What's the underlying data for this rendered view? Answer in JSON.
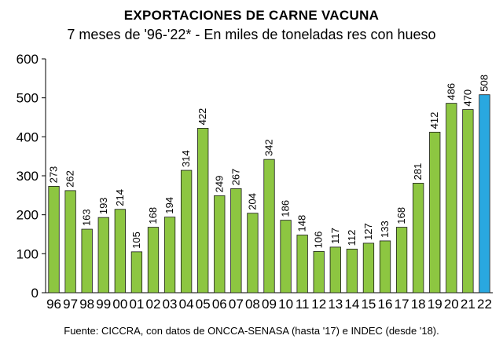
{
  "chart_data": {
    "type": "bar",
    "title": "EXPORTACIONES DE CARNE VACUNA",
    "subtitle": "7 meses de '96-'22* - En miles de toneladas res con hueso",
    "source": "Fuente: CICCRA, con datos de ONCCA-SENASA (hasta '17) e INDEC (desde '18).",
    "categories": [
      "96",
      "97",
      "98",
      "99",
      "00",
      "01",
      "02",
      "03",
      "04",
      "05",
      "06",
      "07",
      "08",
      "09",
      "10",
      "11",
      "12",
      "13",
      "14",
      "15",
      "16",
      "17",
      "18",
      "19",
      "20",
      "21",
      "22"
    ],
    "values": [
      273,
      262,
      163,
      193,
      214,
      105,
      168,
      194,
      314,
      422,
      249,
      267,
      204,
      342,
      186,
      148,
      106,
      117,
      112,
      127,
      133,
      168,
      281,
      412,
      486,
      470,
      508
    ],
    "ylim": [
      0,
      600
    ],
    "yticks": [
      0,
      100,
      200,
      300,
      400,
      500,
      600
    ],
    "grid": false,
    "colors": {
      "bar": "#8dc641",
      "highlight": "#29a8e0"
    },
    "highlight_index": 26
  }
}
